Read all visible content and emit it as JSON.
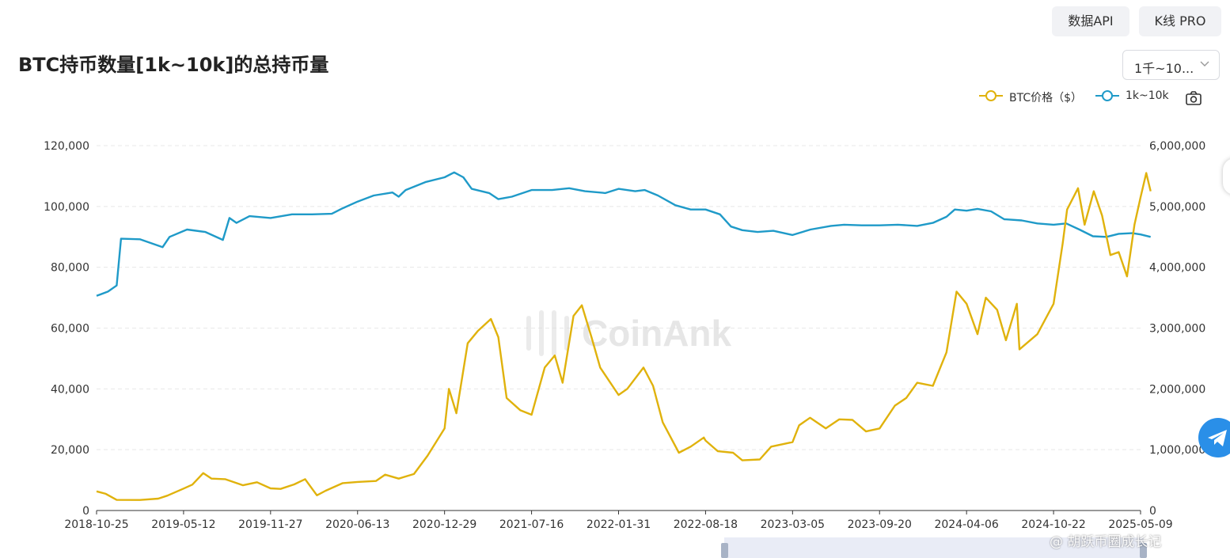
{
  "header": {
    "api_button": "数据API",
    "kline_button": "K线 PRO",
    "title": "BTC持币数量[1k~10k]的总持币量",
    "range_select": "1千~10..."
  },
  "legend": {
    "btc_price": "BTC价格（$）",
    "holdings": "1k~10k"
  },
  "watermark": "CoinAnk",
  "footer_watermark": "@ 胡跃币圈成长记",
  "colors": {
    "btc_price": "#e0b20c",
    "holdings": "#1f9ac8"
  },
  "chart_data": {
    "type": "line",
    "x_labels": [
      "2018-10-25",
      "2019-05-12",
      "2019-11-27",
      "2020-06-13",
      "2020-12-29",
      "2021-07-16",
      "2022-01-31",
      "2022-08-18",
      "2023-03-05",
      "2023-09-20",
      "2024-04-06",
      "2024-10-22",
      "2025-05-09"
    ],
    "y_left": {
      "ticks": [
        "0",
        "20,000",
        "40,000",
        "60,000",
        "80,000",
        "100,000",
        "120,000"
      ],
      "ylim": [
        0,
        120000
      ]
    },
    "y_right": {
      "ticks": [
        "0",
        "1,000,000",
        "2,000,000",
        "3,000,000",
        "4,000,000",
        "5,000,000",
        "6,000,000"
      ],
      "ylim": [
        0,
        6000000
      ]
    },
    "grid": true,
    "legend_position": "top-right",
    "series": [
      {
        "name": "1k~10k",
        "axis": "right",
        "points": [
          [
            "2018-10-25",
            3530000
          ],
          [
            "2018-11-20",
            3600000
          ],
          [
            "2018-12-10",
            3700000
          ],
          [
            "2018-12-20",
            4470000
          ],
          [
            "2019-02-01",
            4460000
          ],
          [
            "2019-03-25",
            4330000
          ],
          [
            "2019-04-10",
            4500000
          ],
          [
            "2019-05-20",
            4620000
          ],
          [
            "2019-07-01",
            4580000
          ],
          [
            "2019-08-10",
            4450000
          ],
          [
            "2019-08-25",
            4810000
          ],
          [
            "2019-09-10",
            4730000
          ],
          [
            "2019-10-10",
            4840000
          ],
          [
            "2019-11-27",
            4810000
          ],
          [
            "2020-01-15",
            4870000
          ],
          [
            "2020-03-01",
            4870000
          ],
          [
            "2020-04-15",
            4880000
          ],
          [
            "2020-05-10",
            4970000
          ],
          [
            "2020-06-13",
            5080000
          ],
          [
            "2020-07-20",
            5180000
          ],
          [
            "2020-09-01",
            5230000
          ],
          [
            "2020-09-15",
            5160000
          ],
          [
            "2020-10-01",
            5270000
          ],
          [
            "2020-11-15",
            5400000
          ],
          [
            "2020-12-29",
            5480000
          ],
          [
            "2021-01-20",
            5560000
          ],
          [
            "2021-02-10",
            5480000
          ],
          [
            "2021-03-01",
            5290000
          ],
          [
            "2021-04-10",
            5220000
          ],
          [
            "2021-05-01",
            5120000
          ],
          [
            "2021-06-01",
            5160000
          ],
          [
            "2021-07-16",
            5270000
          ],
          [
            "2021-09-01",
            5270000
          ],
          [
            "2021-10-10",
            5300000
          ],
          [
            "2021-11-15",
            5250000
          ],
          [
            "2022-01-01",
            5220000
          ],
          [
            "2022-01-31",
            5290000
          ],
          [
            "2022-03-10",
            5250000
          ],
          [
            "2022-04-01",
            5270000
          ],
          [
            "2022-05-01",
            5180000
          ],
          [
            "2022-06-10",
            5020000
          ],
          [
            "2022-07-15",
            4950000
          ],
          [
            "2022-08-18",
            4950000
          ],
          [
            "2022-09-20",
            4870000
          ],
          [
            "2022-10-15",
            4670000
          ],
          [
            "2022-11-10",
            4610000
          ],
          [
            "2022-12-15",
            4580000
          ],
          [
            "2023-01-20",
            4600000
          ],
          [
            "2023-03-05",
            4530000
          ],
          [
            "2023-04-15",
            4620000
          ],
          [
            "2023-06-01",
            4680000
          ],
          [
            "2023-07-01",
            4700000
          ],
          [
            "2023-08-10",
            4690000
          ],
          [
            "2023-09-20",
            4690000
          ],
          [
            "2023-11-01",
            4700000
          ],
          [
            "2023-12-15",
            4680000
          ],
          [
            "2024-01-20",
            4730000
          ],
          [
            "2024-02-20",
            4830000
          ],
          [
            "2024-03-10",
            4950000
          ],
          [
            "2024-04-06",
            4930000
          ],
          [
            "2024-05-01",
            4960000
          ],
          [
            "2024-06-01",
            4920000
          ],
          [
            "2024-07-01",
            4790000
          ],
          [
            "2024-08-10",
            4770000
          ],
          [
            "2024-09-15",
            4720000
          ],
          [
            "2024-10-22",
            4700000
          ],
          [
            "2024-11-20",
            4720000
          ],
          [
            "2024-12-20",
            4620000
          ],
          [
            "2025-01-20",
            4510000
          ],
          [
            "2025-02-20",
            4500000
          ],
          [
            "2025-03-20",
            4550000
          ],
          [
            "2025-04-20",
            4560000
          ],
          [
            "2025-05-09",
            4540000
          ],
          [
            "2025-06-01",
            4500000
          ]
        ]
      },
      {
        "name": "BTC价格（$）",
        "axis": "left",
        "points": [
          [
            "2018-10-25",
            6300
          ],
          [
            "2018-11-15",
            5500
          ],
          [
            "2018-12-10",
            3500
          ],
          [
            "2019-02-01",
            3450
          ],
          [
            "2019-03-15",
            3900
          ],
          [
            "2019-04-05",
            4900
          ],
          [
            "2019-05-12",
            7200
          ],
          [
            "2019-06-01",
            8500
          ],
          [
            "2019-06-26",
            12300
          ],
          [
            "2019-07-15",
            10500
          ],
          [
            "2019-08-15",
            10300
          ],
          [
            "2019-09-25",
            8300
          ],
          [
            "2019-10-27",
            9300
          ],
          [
            "2019-11-27",
            7300
          ],
          [
            "2019-12-20",
            7100
          ],
          [
            "2020-01-20",
            8600
          ],
          [
            "2020-02-14",
            10300
          ],
          [
            "2020-03-12",
            5000
          ],
          [
            "2020-04-01",
            6500
          ],
          [
            "2020-05-10",
            9000
          ],
          [
            "2020-06-13",
            9400
          ],
          [
            "2020-07-25",
            9700
          ],
          [
            "2020-08-15",
            11800
          ],
          [
            "2020-09-15",
            10500
          ],
          [
            "2020-10-20",
            12000
          ],
          [
            "2020-11-20",
            18000
          ],
          [
            "2020-12-29",
            27000
          ],
          [
            "2021-01-08",
            40000
          ],
          [
            "2021-01-25",
            32000
          ],
          [
            "2021-02-20",
            55000
          ],
          [
            "2021-03-15",
            59000
          ],
          [
            "2021-04-14",
            63000
          ],
          [
            "2021-05-01",
            57000
          ],
          [
            "2021-05-20",
            37000
          ],
          [
            "2021-06-20",
            33000
          ],
          [
            "2021-07-16",
            31500
          ],
          [
            "2021-08-15",
            47000
          ],
          [
            "2021-09-07",
            51000
          ],
          [
            "2021-09-25",
            42000
          ],
          [
            "2021-10-20",
            64000
          ],
          [
            "2021-11-08",
            67500
          ],
          [
            "2021-11-30",
            57000
          ],
          [
            "2021-12-20",
            47000
          ],
          [
            "2022-01-31",
            38000
          ],
          [
            "2022-02-20",
            40000
          ],
          [
            "2022-03-29",
            47000
          ],
          [
            "2022-04-20",
            41000
          ],
          [
            "2022-05-12",
            29000
          ],
          [
            "2022-06-18",
            19000
          ],
          [
            "2022-07-15",
            21000
          ],
          [
            "2022-08-14",
            24000
          ],
          [
            "2022-08-18",
            23000
          ],
          [
            "2022-09-15",
            19500
          ],
          [
            "2022-10-20",
            19000
          ],
          [
            "2022-11-10",
            16500
          ],
          [
            "2022-12-20",
            16800
          ],
          [
            "2023-01-15",
            21000
          ],
          [
            "2023-03-05",
            22500
          ],
          [
            "2023-03-20",
            28000
          ],
          [
            "2023-04-14",
            30500
          ],
          [
            "2023-05-20",
            27000
          ],
          [
            "2023-06-20",
            30000
          ],
          [
            "2023-07-20",
            29800
          ],
          [
            "2023-08-20",
            26000
          ],
          [
            "2023-09-20",
            27000
          ],
          [
            "2023-10-25",
            34500
          ],
          [
            "2023-11-20",
            37000
          ],
          [
            "2023-12-15",
            42000
          ],
          [
            "2024-01-20",
            41000
          ],
          [
            "2024-02-20",
            52000
          ],
          [
            "2024-03-14",
            72000
          ],
          [
            "2024-04-06",
            68000
          ],
          [
            "2024-05-01",
            58000
          ],
          [
            "2024-05-20",
            70000
          ],
          [
            "2024-06-15",
            66000
          ],
          [
            "2024-07-05",
            56000
          ],
          [
            "2024-07-30",
            68000
          ],
          [
            "2024-08-05",
            53000
          ],
          [
            "2024-09-15",
            58000
          ],
          [
            "2024-10-22",
            68000
          ],
          [
            "2024-11-12",
            88000
          ],
          [
            "2024-11-22",
            99000
          ],
          [
            "2024-12-17",
            106000
          ],
          [
            "2025-01-01",
            94000
          ],
          [
            "2025-01-22",
            105000
          ],
          [
            "2025-02-10",
            97000
          ],
          [
            "2025-03-01",
            84000
          ],
          [
            "2025-03-20",
            85000
          ],
          [
            "2025-04-08",
            77000
          ],
          [
            "2025-04-25",
            94000
          ],
          [
            "2025-05-09",
            103000
          ],
          [
            "2025-05-22",
            111000
          ],
          [
            "2025-06-01",
            105000
          ]
        ]
      }
    ]
  }
}
